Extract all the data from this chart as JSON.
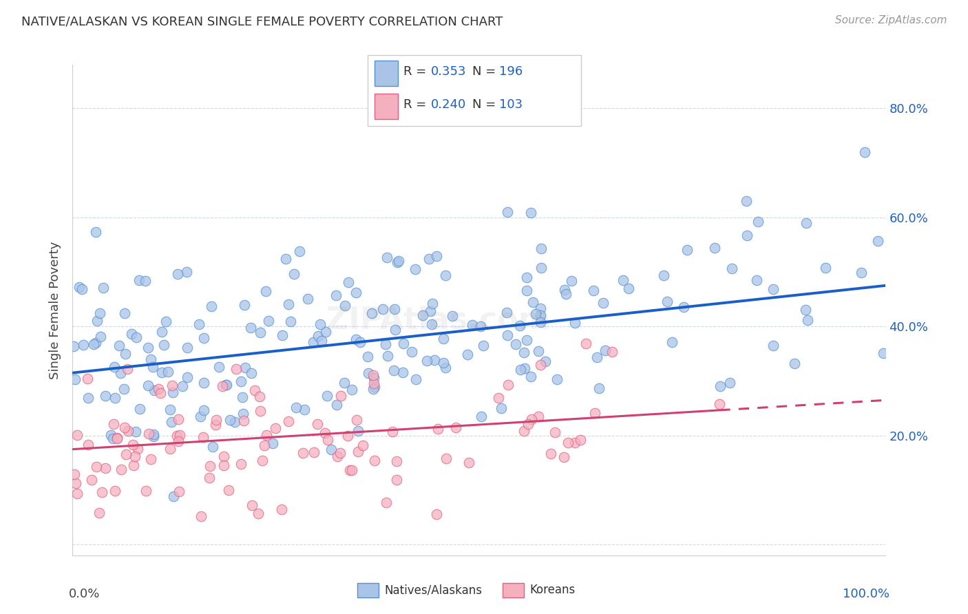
{
  "title": "NATIVE/ALASKAN VS KOREAN SINGLE FEMALE POVERTY CORRELATION CHART",
  "source": "Source: ZipAtlas.com",
  "ylabel": "Single Female Poverty",
  "native_color": "#aac4e8",
  "korean_color": "#f5b0c0",
  "native_edge_color": "#5590d0",
  "korean_edge_color": "#e06080",
  "native_line_color": "#1a5fc8",
  "korean_line_color": "#d04070",
  "background_color": "#ffffff",
  "grid_color": "#c8d4e8",
  "title_color": "#333333",
  "source_color": "#999999",
  "blue_text_color": "#2060c0",
  "native_R": 0.353,
  "native_N": 196,
  "korean_R": 0.24,
  "korean_N": 103,
  "xlim": [
    0.0,
    1.0
  ],
  "ylim": [
    -0.02,
    0.88
  ],
  "seed": 12345,
  "native_intercept": 0.315,
  "native_slope": 0.16,
  "korean_intercept": 0.175,
  "korean_slope": 0.09
}
